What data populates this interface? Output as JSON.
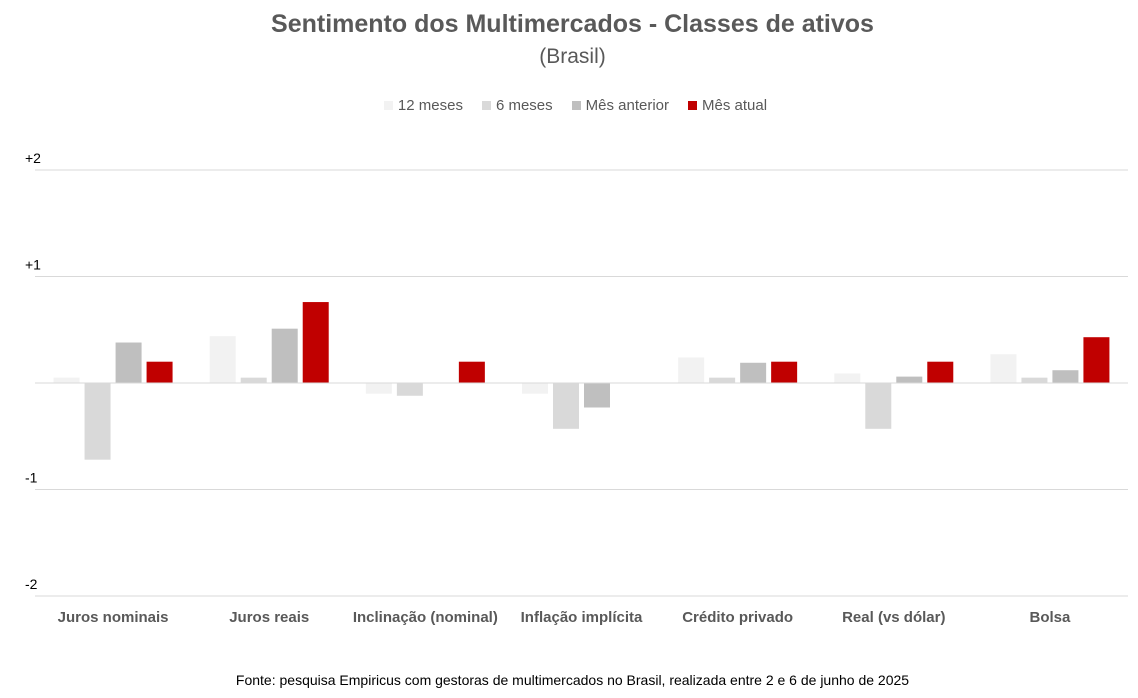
{
  "chart_data": {
    "type": "bar",
    "title": "Sentimento dos Multimercados - Classes de ativos",
    "subtitle": "(Brasil)",
    "categories": [
      "Juros nominais",
      "Juros reais",
      "Inclinação (nominal)",
      "Inflação implícita",
      "Crédito privado",
      "Real (vs dólar)",
      "Bolsa"
    ],
    "series": [
      {
        "name": "12 meses",
        "color": "#f2f2f2",
        "values": [
          0.05,
          0.44,
          -0.1,
          -0.1,
          0.24,
          0.09,
          0.27
        ]
      },
      {
        "name": "6 meses",
        "color": "#d9d9d9",
        "values": [
          -0.72,
          0.05,
          -0.12,
          -0.43,
          0.05,
          -0.43,
          0.05
        ]
      },
      {
        "name": "Mês anterior",
        "color": "#bfbfbf",
        "values": [
          0.38,
          0.51,
          0.0,
          -0.23,
          0.19,
          0.06,
          0.12
        ]
      },
      {
        "name": "Mês atual",
        "color": "#c00000",
        "values": [
          0.2,
          0.76,
          0.2,
          0.0,
          0.2,
          0.2,
          0.43
        ]
      }
    ],
    "ylim": [
      -2,
      2
    ],
    "yticks": [
      2,
      1,
      -1,
      -2
    ],
    "ytick_labels": [
      "+2",
      "+1",
      "-1",
      "-2"
    ],
    "grid": true,
    "legend_position": "top"
  },
  "source": "Fonte: pesquisa Empiricus com gestoras de multimercados no Brasil, realizada entre 2 e 6 de junho de 2025"
}
